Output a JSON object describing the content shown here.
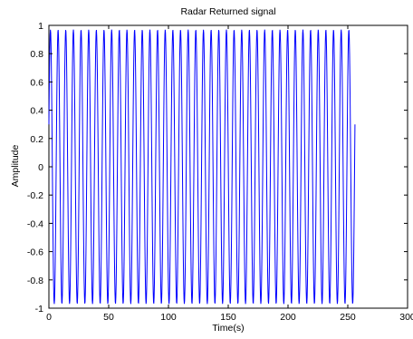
{
  "chart_data": {
    "type": "line",
    "title": "Radar Returned signal",
    "xlabel": "Time(s)",
    "ylabel": "Amplitude",
    "xlim": [
      0,
      300
    ],
    "ylim": [
      -1,
      1
    ],
    "xticks": [
      0,
      50,
      100,
      150,
      200,
      250,
      300
    ],
    "xtick_labels": [
      "0",
      "50",
      "100",
      "150",
      "200",
      "250",
      "300"
    ],
    "yticks": [
      -1,
      -0.8,
      -0.6,
      -0.4,
      -0.2,
      0,
      0.2,
      0.4,
      0.6,
      0.8,
      1
    ],
    "ytick_labels": [
      "-1",
      "-0.8",
      "-0.6",
      "-0.4",
      "-0.2",
      "0",
      "0.2",
      "0.4",
      "0.6",
      "0.8",
      "1"
    ],
    "grid": false,
    "series": [
      {
        "color": "#0000ff",
        "x_start": 0,
        "x_end": 256,
        "samples": 1024,
        "cycles_in_range": 40,
        "amplitude": 0.97,
        "initial_value": 0.3
      }
    ]
  }
}
